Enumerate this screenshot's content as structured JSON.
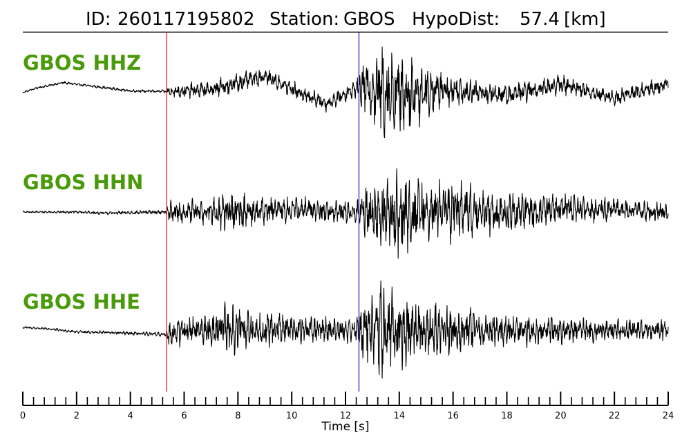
{
  "header": {
    "id_label": "ID:",
    "id_value": "260117195802",
    "station_label": "Station:",
    "station_value": "GBOS",
    "hypodist_label": "HypoDist:",
    "hypodist_value": "57.4",
    "hypodist_unit": "[km]"
  },
  "chart_data": {
    "type": "line",
    "title": "ID: 260117195802   Station: GBOS   HypoDist:    57.4 [km]",
    "xlabel": "Time [s]",
    "xlim": [
      0,
      24
    ],
    "x_major_ticks": [
      0,
      2,
      4,
      6,
      8,
      10,
      12,
      14,
      16,
      18,
      20,
      22,
      24
    ],
    "x_tick_labels": [
      "0",
      "2",
      "4",
      "6",
      "8",
      "10",
      "12",
      "14",
      "16",
      "18",
      "20",
      "22",
      "24"
    ],
    "x_minor_step": 0.4,
    "grid": false,
    "colors": {
      "trace": "#000000",
      "channel_label": "#4a9a0a",
      "p_pick": "#e8312f",
      "s_pick": "#3a36c8",
      "axis": "#000000"
    },
    "picks": [
      {
        "name": "P",
        "time": 5.35
      },
      {
        "name": "S",
        "time": 12.5
      }
    ],
    "series": [
      {
        "name": "GBOS HHZ",
        "envelope": [
          [
            0,
            0.02
          ],
          [
            5.3,
            0.03
          ],
          [
            5.4,
            0.12
          ],
          [
            7,
            0.16
          ],
          [
            8,
            0.2
          ],
          [
            9,
            0.14
          ],
          [
            10,
            0.16
          ],
          [
            11.5,
            0.14
          ],
          [
            12.4,
            0.16
          ],
          [
            12.6,
            0.45
          ],
          [
            13.5,
            0.9
          ],
          [
            14.5,
            0.7
          ],
          [
            15.5,
            0.35
          ],
          [
            16.5,
            0.25
          ],
          [
            18,
            0.2
          ],
          [
            20,
            0.18
          ],
          [
            22,
            0.15
          ],
          [
            24,
            0.15
          ]
        ],
        "trend": [
          [
            0,
            0.0
          ],
          [
            0.5,
            0.08
          ],
          [
            1.5,
            0.18
          ],
          [
            2.5,
            0.12
          ],
          [
            4,
            0.03
          ],
          [
            5.3,
            0.02
          ],
          [
            7,
            0.05
          ],
          [
            9,
            0.3
          ],
          [
            10.5,
            -0.05
          ],
          [
            11.3,
            -0.2
          ],
          [
            12.5,
            0.1
          ],
          [
            14,
            0.0
          ],
          [
            16,
            0.05
          ],
          [
            18,
            -0.05
          ],
          [
            20,
            0.15
          ],
          [
            22,
            -0.1
          ],
          [
            24,
            0.15
          ]
        ]
      },
      {
        "name": "GBOS HHN",
        "envelope": [
          [
            0,
            0.02
          ],
          [
            5.3,
            0.04
          ],
          [
            5.4,
            0.2
          ],
          [
            7,
            0.25
          ],
          [
            7.7,
            0.45
          ],
          [
            8.5,
            0.28
          ],
          [
            10,
            0.25
          ],
          [
            12.4,
            0.2
          ],
          [
            12.6,
            0.5
          ],
          [
            14,
            0.85
          ],
          [
            15,
            0.55
          ],
          [
            16,
            0.6
          ],
          [
            17,
            0.45
          ],
          [
            19,
            0.35
          ],
          [
            20,
            0.28
          ],
          [
            22,
            0.22
          ],
          [
            24,
            0.18
          ]
        ],
        "trend": [
          [
            0,
            0.0
          ],
          [
            2,
            0.0
          ],
          [
            3,
            -0.02
          ],
          [
            5.3,
            0.0
          ],
          [
            8,
            0.0
          ],
          [
            10,
            0.05
          ],
          [
            12,
            0.0
          ],
          [
            14,
            -0.05
          ],
          [
            16,
            0.05
          ],
          [
            18,
            -0.05
          ],
          [
            20,
            0.08
          ],
          [
            24,
            0.0
          ]
        ]
      },
      {
        "name": "GBOS HHE",
        "envelope": [
          [
            0,
            0.02
          ],
          [
            5.3,
            0.04
          ],
          [
            5.4,
            0.25
          ],
          [
            7,
            0.3
          ],
          [
            7.6,
            0.55
          ],
          [
            8.5,
            0.35
          ],
          [
            10,
            0.28
          ],
          [
            12.4,
            0.22
          ],
          [
            12.6,
            0.6
          ],
          [
            13.2,
            0.85
          ],
          [
            14,
            0.8
          ],
          [
            15,
            0.55
          ],
          [
            17,
            0.35
          ],
          [
            20,
            0.25
          ],
          [
            22,
            0.2
          ],
          [
            24,
            0.18
          ]
        ],
        "trend": [
          [
            0,
            0.05
          ],
          [
            1,
            0.02
          ],
          [
            2,
            -0.03
          ],
          [
            3,
            -0.04
          ],
          [
            4,
            -0.06
          ],
          [
            5.3,
            -0.08
          ],
          [
            6,
            0.0
          ],
          [
            8,
            0.0
          ],
          [
            10,
            0.02
          ],
          [
            12,
            0.0
          ],
          [
            14,
            0.0
          ],
          [
            16,
            0.0
          ],
          [
            24,
            0.0
          ]
        ]
      }
    ]
  }
}
